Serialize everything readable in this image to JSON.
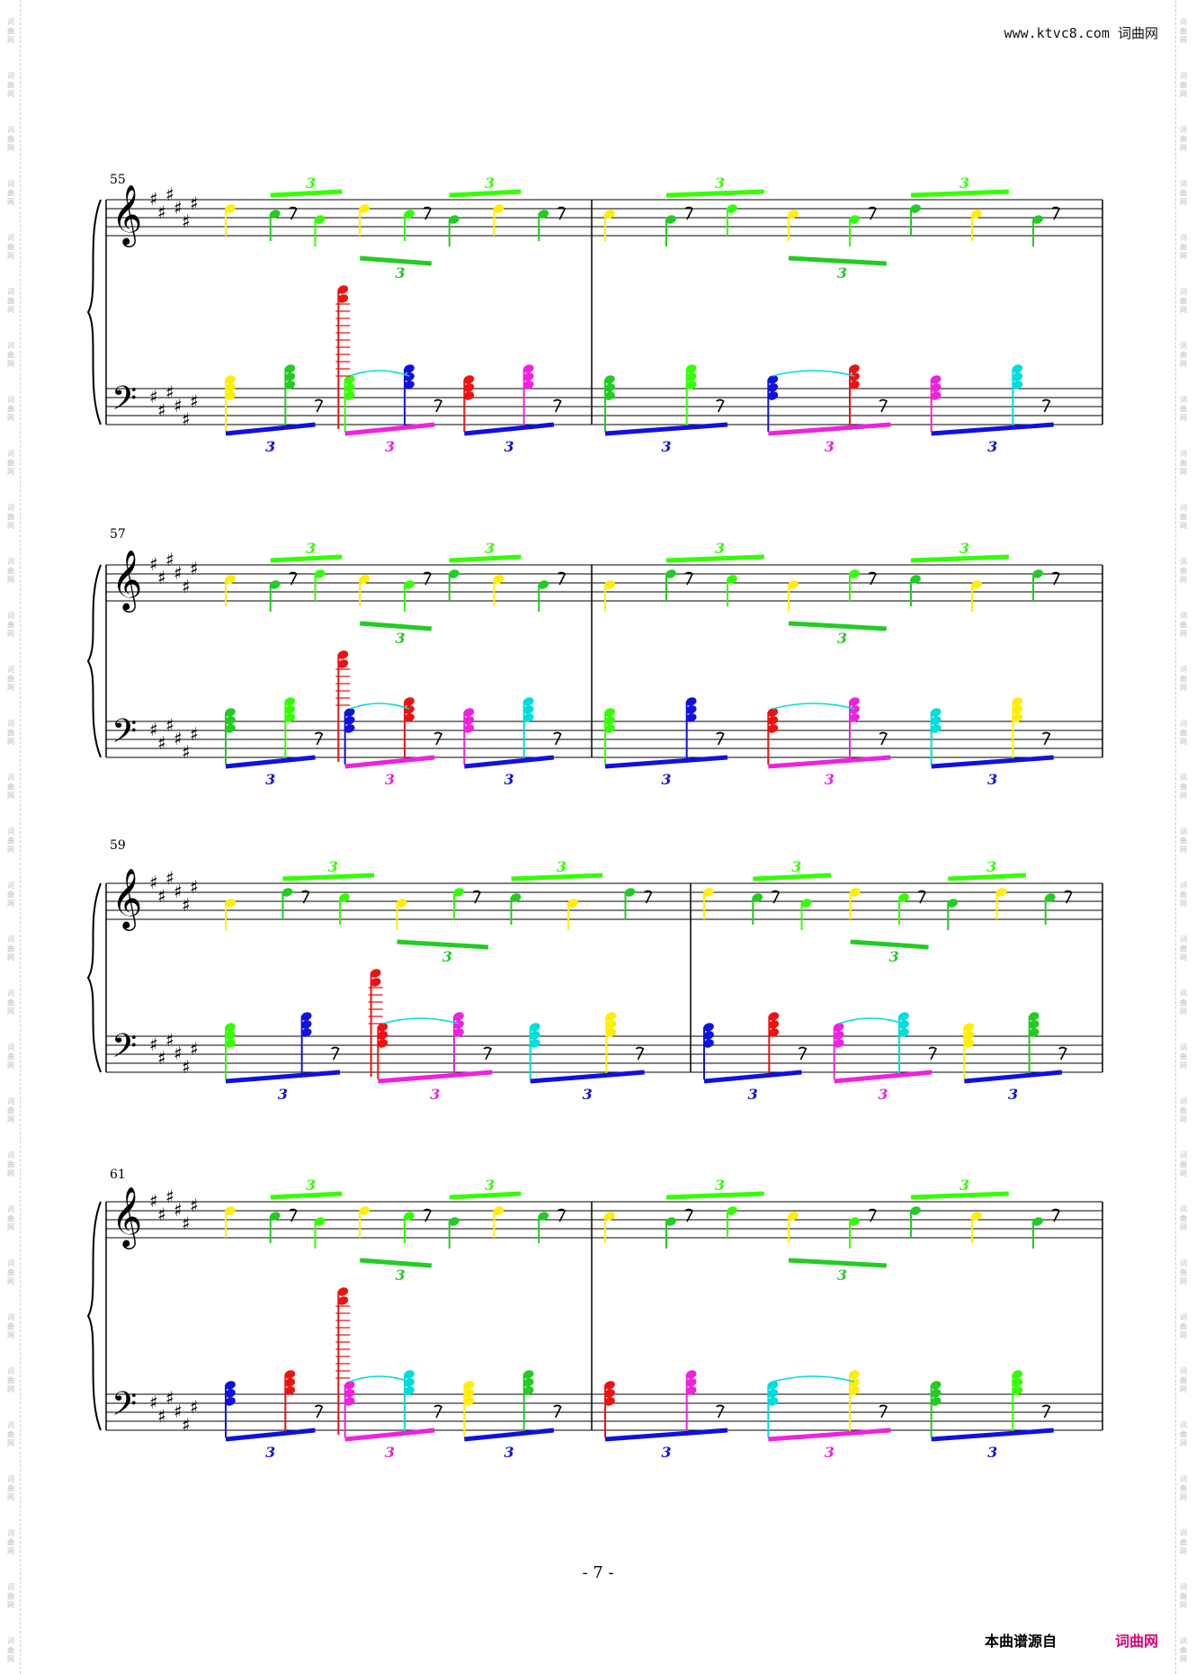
{
  "header": {
    "site_url": "www.ktvc8.com",
    "site_name": "词曲网"
  },
  "side_mark": "词曲网",
  "systems": [
    {
      "measure_number": "55"
    },
    {
      "measure_number": "57"
    },
    {
      "measure_number": "59"
    },
    {
      "measure_number": "61"
    }
  ],
  "tuplet_label": "3",
  "page_number": "- 7 -",
  "footer": {
    "source_text": "本曲谱源自",
    "source_site": "词曲网"
  },
  "colors": {
    "yellow": "#ffee00",
    "green": "#22cc22",
    "lime": "#33ff00",
    "blue": "#1111dd",
    "red": "#ee1111",
    "magenta": "#ee22dd",
    "cyan": "#00dddd",
    "staff": "#000000"
  }
}
